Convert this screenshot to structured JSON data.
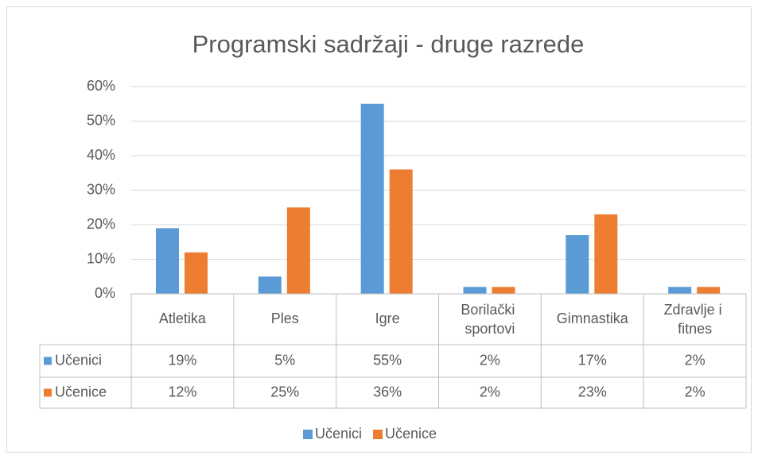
{
  "chart_data": {
    "type": "bar",
    "title": "Programski sadržaji - druge razrede",
    "categories": [
      "Atletika",
      "Ples",
      "Igre",
      "Borilački sportovi",
      "Gimnastika",
      "Zdravlje i fitnes"
    ],
    "series": [
      {
        "name": "Učenici",
        "color": "#5b9bd5",
        "values": [
          19,
          5,
          55,
          2,
          17,
          2
        ],
        "value_labels": [
          "19%",
          "5%",
          "55%",
          "2%",
          "17%",
          "2%"
        ]
      },
      {
        "name": "Učenice",
        "color": "#ed7d31",
        "values": [
          12,
          25,
          36,
          2,
          23,
          2
        ],
        "value_labels": [
          "12%",
          "25%",
          "36%",
          "2%",
          "23%",
          "2%"
        ]
      }
    ],
    "ylim": [
      0,
      60
    ],
    "yticks": [
      {
        "value": 0,
        "label": "0%"
      },
      {
        "value": 10,
        "label": "10%"
      },
      {
        "value": 20,
        "label": "20%"
      },
      {
        "value": 30,
        "label": "30%"
      },
      {
        "value": 40,
        "label": "40%"
      },
      {
        "value": 50,
        "label": "50%"
      },
      {
        "value": 60,
        "label": "60%"
      }
    ],
    "grid": true,
    "legend": "bottom",
    "data_table": true
  }
}
